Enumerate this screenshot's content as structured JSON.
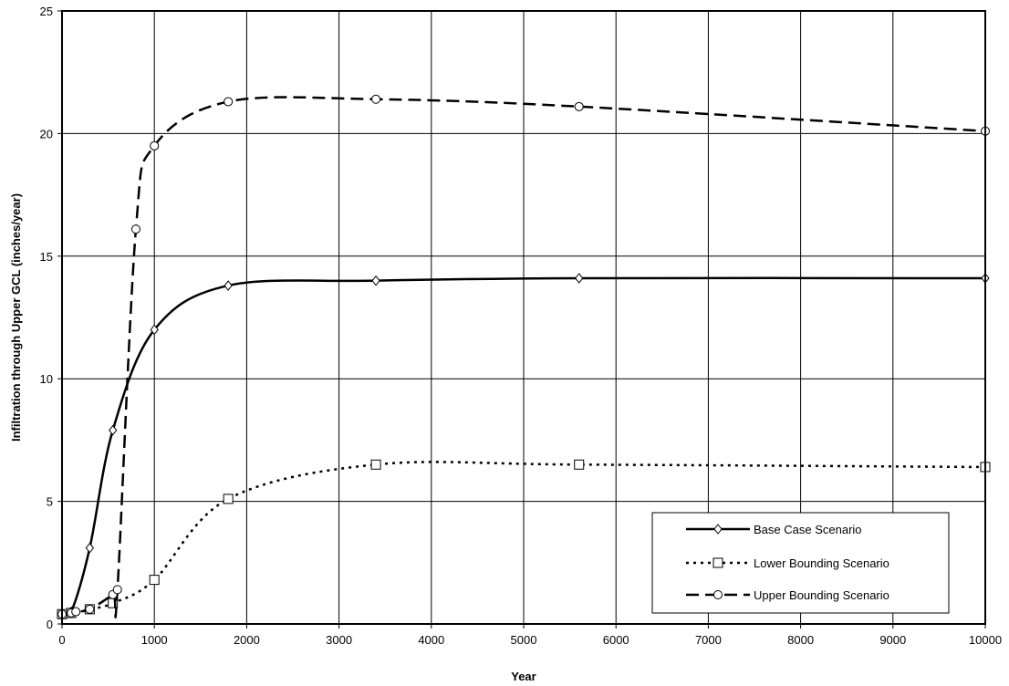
{
  "chart_data": {
    "type": "line",
    "title": "",
    "xlabel": "Year",
    "ylabel": "Infiltration through Upper GCL (inches/year)",
    "xlim": [
      0,
      10000
    ],
    "ylim": [
      0,
      25
    ],
    "x_ticks": [
      0,
      1000,
      2000,
      3000,
      4000,
      5000,
      6000,
      7000,
      8000,
      9000,
      10000
    ],
    "y_ticks": [
      0,
      5,
      10,
      15,
      20,
      25
    ],
    "grid": true,
    "legend_position": "bottom-right",
    "series": [
      {
        "name": "Base Case Scenario",
        "line_style": "solid",
        "marker": "diamond",
        "color": "#000000",
        "points": [
          [
            0,
            0.4
          ],
          [
            100,
            0.5
          ],
          [
            300,
            3.1
          ],
          [
            550,
            7.9
          ],
          [
            1000,
            12.0
          ],
          [
            1800,
            13.8
          ],
          [
            3400,
            14.0
          ],
          [
            5600,
            14.1
          ],
          [
            10000,
            14.1
          ]
        ]
      },
      {
        "name": "Lower Bounding Scenario",
        "line_style": "dotted",
        "marker": "square",
        "color": "#000000",
        "points": [
          [
            0,
            0.4
          ],
          [
            100,
            0.45
          ],
          [
            300,
            0.6
          ],
          [
            550,
            0.85
          ],
          [
            1000,
            1.8
          ],
          [
            1800,
            5.1
          ],
          [
            3400,
            6.5
          ],
          [
            5600,
            6.5
          ],
          [
            10000,
            6.4
          ]
        ]
      },
      {
        "name": "Upper Bounding Scenario",
        "line_style": "dashed",
        "marker": "circle",
        "color": "#000000",
        "points": [
          [
            0,
            0.4
          ],
          [
            100,
            0.45
          ],
          [
            150,
            0.5
          ],
          [
            300,
            0.6
          ],
          [
            550,
            1.2
          ],
          [
            600,
            1.4
          ],
          [
            800,
            16.1
          ],
          [
            1000,
            19.5
          ],
          [
            1800,
            21.3
          ],
          [
            3400,
            21.4
          ],
          [
            5600,
            21.1
          ],
          [
            10000,
            20.1
          ]
        ]
      }
    ]
  }
}
